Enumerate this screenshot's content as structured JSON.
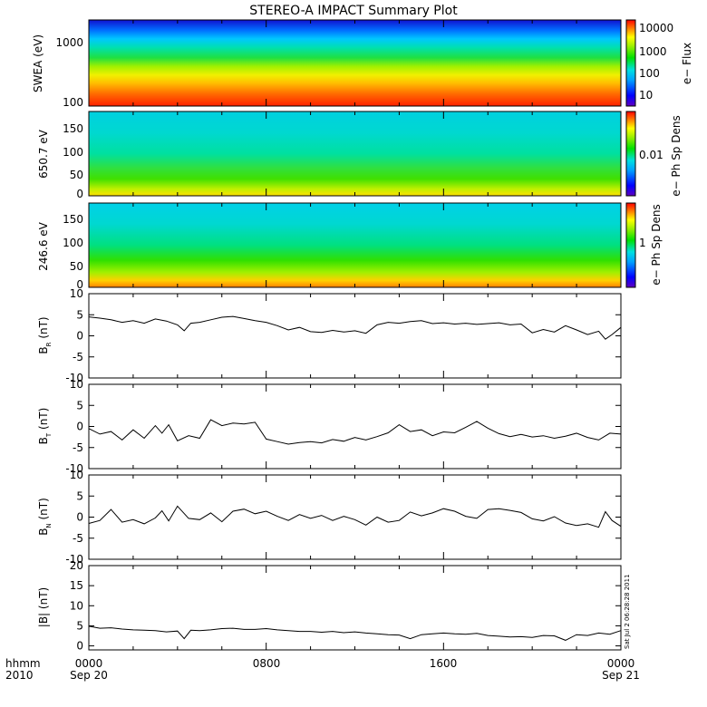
{
  "title": "STEREO-A IMPACT Summary Plot",
  "stamp": "Sat Jul  2 06:28:28 2011",
  "xaxis": {
    "row_label": "hhmm",
    "year_label": "2010",
    "ticks": [
      {
        "label": "0000",
        "sublabel": "Sep 20",
        "hour": 0
      },
      {
        "label": "0800",
        "sublabel": "",
        "hour": 8
      },
      {
        "label": "1600",
        "sublabel": "",
        "hour": 16
      },
      {
        "label": "0000",
        "sublabel": "Sep 21",
        "hour": 24
      }
    ]
  },
  "colors": {
    "line": "#000000",
    "frame": "#000000",
    "background": "#ffffff"
  },
  "chart_data": [
    {
      "type": "heatmap",
      "id": "swea",
      "ylabel": "SWEA (eV)",
      "yscale": "log",
      "ylim": [
        90,
        2100
      ],
      "ytick_labels": [
        "100",
        "1000"
      ],
      "colorbar": {
        "label": "e− Flux",
        "scale": "log",
        "range": [
          5,
          15000
        ],
        "tick_labels": [
          "10",
          "100",
          "1000",
          "10000"
        ]
      },
      "description_rows": "flux decreases with energy: red at 100 eV to blue near 2000 eV, nearly constant in time"
    },
    {
      "type": "heatmap",
      "id": "pad650",
      "ylabel": "650.7 eV",
      "ylim": [
        0,
        180
      ],
      "ytick_labels": [
        "0",
        "50",
        "100",
        "150"
      ],
      "colorbar": {
        "label": "e− Ph Sp Dens",
        "tick_labels": [
          "0.01"
        ]
      }
    },
    {
      "type": "heatmap",
      "id": "pad246",
      "ylabel": "246.6 eV",
      "ylim": [
        0,
        180
      ],
      "ytick_labels": [
        "0",
        "50",
        "100",
        "150"
      ],
      "colorbar": {
        "label": "e− Ph Sp Dens",
        "tick_labels": [
          "1"
        ]
      }
    },
    {
      "type": "line",
      "id": "br",
      "ylabel_main": "B",
      "ylabel_sub": "R",
      "ylabel_unit": " (nT)",
      "ylim": [
        -10,
        10
      ],
      "ytick_labels": [
        "-10",
        "-5",
        "0",
        "5",
        "10"
      ],
      "x": [
        0,
        0.5,
        1,
        1.5,
        2,
        2.5,
        3,
        3.5,
        4,
        4.3,
        4.6,
        5,
        5.5,
        6,
        6.5,
        7,
        7.5,
        8,
        8.5,
        9,
        9.5,
        10,
        10.5,
        11,
        11.5,
        12,
        12.5,
        13,
        13.5,
        14,
        14.5,
        15,
        15.5,
        16,
        16.5,
        17,
        17.5,
        18,
        18.5,
        19,
        19.5,
        20,
        20.5,
        21,
        21.5,
        22,
        22.5,
        23,
        23.3,
        23.6,
        24
      ],
      "y": [
        4.5,
        4.2,
        3.8,
        3.2,
        3.6,
        3.0,
        4.0,
        3.5,
        2.6,
        1.2,
        3.0,
        3.2,
        3.8,
        4.4,
        4.6,
        4.1,
        3.6,
        3.2,
        2.4,
        1.4,
        2.0,
        1.0,
        0.8,
        1.3,
        0.9,
        1.2,
        0.6,
        2.6,
        3.2,
        3.0,
        3.4,
        3.6,
        2.9,
        3.1,
        2.8,
        3.0,
        2.7,
        2.9,
        3.1,
        2.6,
        2.8,
        0.7,
        1.5,
        0.9,
        2.4,
        1.4,
        0.3,
        1.1,
        -0.8,
        0.3,
        2.0
      ]
    },
    {
      "type": "line",
      "id": "bt",
      "ylabel_main": "B",
      "ylabel_sub": "T",
      "ylabel_unit": " (nT)",
      "ylim": [
        -10,
        10
      ],
      "ytick_labels": [
        "-10",
        "-5",
        "0",
        "5",
        "10"
      ],
      "x": [
        0,
        0.5,
        1,
        1.5,
        2,
        2.5,
        3,
        3.3,
        3.6,
        4,
        4.5,
        5,
        5.5,
        6,
        6.5,
        7,
        7.5,
        8,
        8.5,
        9,
        9.5,
        10,
        10.5,
        11,
        11.5,
        12,
        12.5,
        13,
        13.5,
        14,
        14.5,
        15,
        15.5,
        16,
        16.5,
        17,
        17.5,
        18,
        18.5,
        19,
        19.5,
        20,
        20.5,
        21,
        21.5,
        22,
        22.5,
        23,
        23.5,
        24
      ],
      "y": [
        -0.5,
        -1.8,
        -1.2,
        -3.2,
        -0.8,
        -2.8,
        0.2,
        -1.6,
        0.4,
        -3.4,
        -2.2,
        -2.8,
        1.6,
        0.2,
        0.8,
        0.6,
        1.0,
        -3.0,
        -3.6,
        -4.2,
        -3.8,
        -3.6,
        -3.9,
        -3.1,
        -3.5,
        -2.6,
        -3.2,
        -2.4,
        -1.5,
        0.4,
        -1.2,
        -0.8,
        -2.2,
        -1.3,
        -1.5,
        -0.2,
        1.2,
        -0.4,
        -1.7,
        -2.4,
        -1.9,
        -2.5,
        -2.2,
        -2.8,
        -2.3,
        -1.6,
        -2.6,
        -3.2,
        -1.6,
        -1.8
      ]
    },
    {
      "type": "line",
      "id": "bn",
      "ylabel_main": "B",
      "ylabel_sub": "N",
      "ylabel_unit": " (nT)",
      "ylim": [
        -10,
        10
      ],
      "ytick_labels": [
        "-10",
        "-5",
        "0",
        "5",
        "10"
      ],
      "x": [
        0,
        0.5,
        1,
        1.5,
        2,
        2.5,
        3,
        3.3,
        3.6,
        4,
        4.5,
        5,
        5.5,
        6,
        6.5,
        7,
        7.5,
        8,
        8.5,
        9,
        9.5,
        10,
        10.5,
        11,
        11.5,
        12,
        12.5,
        13,
        13.5,
        14,
        14.5,
        15,
        15.5,
        16,
        16.5,
        17,
        17.5,
        18,
        18.5,
        19,
        19.5,
        20,
        20.5,
        21,
        21.5,
        22,
        22.5,
        23,
        23.3,
        23.6,
        24
      ],
      "y": [
        -1.5,
        -0.8,
        1.8,
        -1.2,
        -0.6,
        -1.6,
        -0.2,
        1.5,
        -0.9,
        2.6,
        -0.3,
        -0.6,
        1.0,
        -1.1,
        1.4,
        1.9,
        0.8,
        1.4,
        0.2,
        -0.8,
        0.6,
        -0.3,
        0.4,
        -0.8,
        0.2,
        -0.6,
        -1.9,
        0.0,
        -1.2,
        -0.8,
        1.2,
        0.3,
        1.0,
        2.0,
        1.4,
        0.2,
        -0.3,
        1.8,
        2.0,
        1.6,
        1.1,
        -0.4,
        -0.9,
        0.1,
        -1.4,
        -2.0,
        -1.6,
        -2.4,
        1.3,
        -0.8,
        -2.2
      ]
    },
    {
      "type": "line",
      "id": "bmag",
      "ylabel_main": "|B|",
      "ylabel_sub": "",
      "ylabel_unit": " (nT)",
      "ylim": [
        -1,
        20
      ],
      "ytick_labels": [
        "0",
        "5",
        "10",
        "15",
        "20"
      ],
      "x": [
        0,
        0.5,
        1,
        1.5,
        2,
        2.5,
        3,
        3.5,
        4,
        4.3,
        4.6,
        5,
        5.5,
        6,
        6.5,
        7,
        7.5,
        8,
        8.5,
        9,
        9.5,
        10,
        10.5,
        11,
        11.5,
        12,
        12.5,
        13,
        13.5,
        14,
        14.5,
        15,
        15.5,
        16,
        16.5,
        17,
        17.5,
        18,
        18.5,
        19,
        19.5,
        20,
        20.5,
        21,
        21.5,
        22,
        22.5,
        23,
        23.5,
        24
      ],
      "y": [
        4.9,
        4.4,
        4.5,
        4.2,
        4.0,
        3.9,
        3.8,
        3.5,
        3.7,
        1.8,
        3.9,
        3.8,
        4.0,
        4.3,
        4.4,
        4.1,
        4.1,
        4.3,
        4.0,
        3.8,
        3.6,
        3.6,
        3.4,
        3.6,
        3.3,
        3.5,
        3.2,
        3.0,
        2.8,
        2.7,
        1.8,
        2.8,
        3.0,
        3.2,
        3.0,
        2.9,
        3.1,
        2.6,
        2.4,
        2.2,
        2.3,
        2.1,
        2.6,
        2.5,
        1.4,
        2.8,
        2.6,
        3.2,
        2.9,
        3.8
      ]
    }
  ]
}
